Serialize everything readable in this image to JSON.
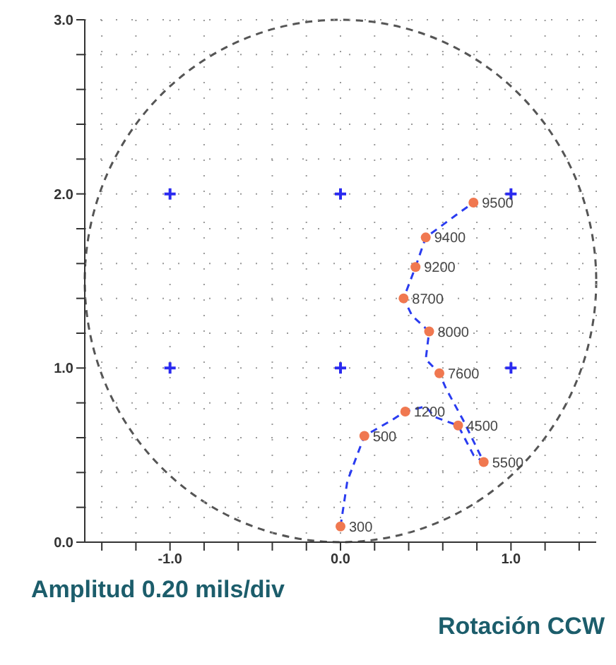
{
  "chart_data": {
    "type": "line",
    "xlim": [
      -1.5,
      1.5
    ],
    "ylim": [
      0,
      3
    ],
    "xticks": [
      {
        "value": -1.4,
        "label": null
      },
      {
        "value": -1.2,
        "label": null
      },
      {
        "value": -1.0,
        "label": "-1.0"
      },
      {
        "value": -0.8,
        "label": null
      },
      {
        "value": -0.6,
        "label": null
      },
      {
        "value": -0.4,
        "label": null
      },
      {
        "value": -0.2,
        "label": null
      },
      {
        "value": 0,
        "label": "0.0"
      },
      {
        "value": 0.2,
        "label": null
      },
      {
        "value": 0.4,
        "label": null
      },
      {
        "value": 0.6,
        "label": null
      },
      {
        "value": 0.8,
        "label": null
      },
      {
        "value": 1.0,
        "label": "1.0"
      },
      {
        "value": 1.2,
        "label": null
      },
      {
        "value": 1.4,
        "label": null
      }
    ],
    "yticks": [
      {
        "value": 0,
        "label": "0.0"
      },
      {
        "value": 0.2,
        "label": null
      },
      {
        "value": 0.4,
        "label": null
      },
      {
        "value": 0.6,
        "label": null
      },
      {
        "value": 0.8,
        "label": null
      },
      {
        "value": 1.0,
        "label": "1.0"
      },
      {
        "value": 1.2,
        "label": null
      },
      {
        "value": 1.4,
        "label": null
      },
      {
        "value": 1.6,
        "label": null
      },
      {
        "value": 1.8,
        "label": null
      },
      {
        "value": 2.0,
        "label": "2.0"
      },
      {
        "value": 2.2,
        "label": null
      },
      {
        "value": 2.4,
        "label": null
      },
      {
        "value": 2.6,
        "label": null
      },
      {
        "value": 2.8,
        "label": null
      },
      {
        "value": 3.0,
        "label": "3.0"
      }
    ],
    "grid": true,
    "series": [
      {
        "color": "#2a3cf0",
        "line_style": "dashed",
        "marker": "none",
        "x": [
          0,
          0.04,
          0.14,
          0.3,
          0.38,
          0.5,
          0.55,
          0.69,
          0.78,
          0.84,
          0.72,
          0.62,
          0.58,
          0.5,
          0.52,
          0.42,
          0.37,
          0.44,
          0.5,
          0.68,
          0.78
        ],
        "values": [
          0.09,
          0.35,
          0.61,
          0.7,
          0.75,
          0.78,
          0.72,
          0.67,
          0.5,
          0.46,
          0.7,
          0.88,
          0.97,
          1.05,
          1.21,
          1.3,
          1.4,
          1.58,
          1.75,
          1.88,
          1.95
        ]
      },
      {
        "type": "scatter",
        "color": "#f07850",
        "marker": "circle",
        "x": [
          0,
          0.14,
          0.38,
          0.69,
          0.84,
          0.58,
          0.52,
          0.37,
          0.44,
          0.5,
          0.78
        ],
        "values": [
          0.09,
          0.61,
          0.75,
          0.67,
          0.46,
          0.97,
          1.21,
          1.4,
          1.58,
          1.75,
          1.95
        ]
      },
      {
        "type": "scatter",
        "color": "#2a2af0",
        "marker": "cross",
        "x": [
          -1,
          -1,
          0,
          0,
          1,
          1
        ],
        "values": [
          1,
          2,
          1,
          2,
          1,
          2
        ]
      }
    ],
    "annotations": [
      {
        "text": "300",
        "x": 0,
        "y": 0.09
      },
      {
        "text": "500",
        "x": 0.14,
        "y": 0.61
      },
      {
        "text": "1200",
        "x": 0.38,
        "y": 0.75
      },
      {
        "text": "4500",
        "x": 0.69,
        "y": 0.67
      },
      {
        "text": "5500",
        "x": 0.84,
        "y": 0.46
      },
      {
        "text": "7600",
        "x": 0.58,
        "y": 0.97
      },
      {
        "text": "8000",
        "x": 0.52,
        "y": 1.21
      },
      {
        "text": "8700",
        "x": 0.37,
        "y": 1.4
      },
      {
        "text": "9200",
        "x": 0.44,
        "y": 1.58
      },
      {
        "text": "9400",
        "x": 0.5,
        "y": 1.75
      },
      {
        "text": "9500",
        "x": 0.78,
        "y": 1.95
      },
      "Amplitud 0.20 mils/div",
      "Rotación CCW"
    ]
  }
}
